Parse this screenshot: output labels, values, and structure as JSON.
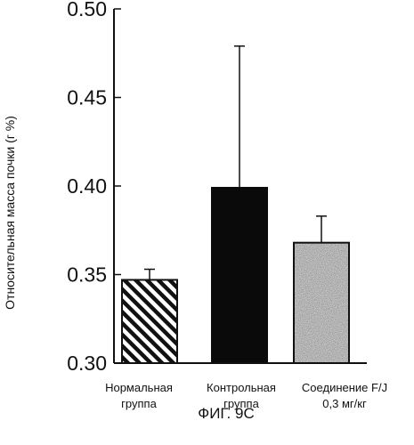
{
  "chart_data": {
    "type": "bar",
    "title": "",
    "ylabel": "Относительная масса почки (г %)",
    "xlabel": "",
    "ylim": [
      0.3,
      0.5
    ],
    "yticks": [
      "0.30",
      "0.35",
      "0.40",
      "0.45",
      "0.50"
    ],
    "categories": [
      [
        "Нормальная",
        "группа"
      ],
      [
        "Контрольная",
        "группа"
      ],
      [
        "Соединение F/J",
        "0,3 мг/кг"
      ]
    ],
    "values": [
      0.347,
      0.399,
      0.368
    ],
    "error_upper": [
      0.353,
      0.479,
      0.383
    ],
    "bar_fills": [
      "diagonal-hatch",
      "solid-black",
      "stipple-gray"
    ],
    "grid": false,
    "caption": "ФИГ. 9С"
  }
}
